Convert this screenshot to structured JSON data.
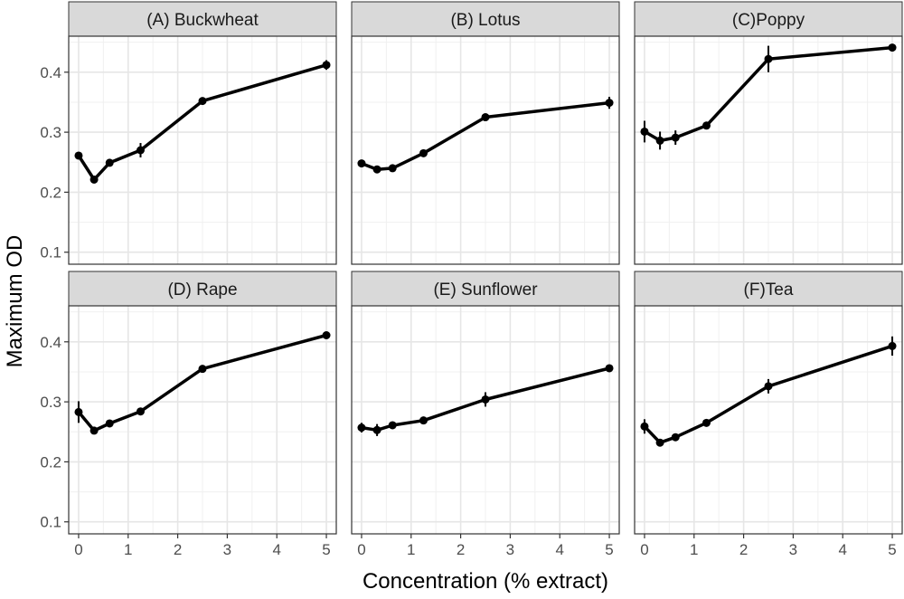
{
  "figure": {
    "xlabel": "Concentration (% extract)",
    "ylabel": "Maximum OD"
  },
  "chart_data": [
    {
      "type": "line",
      "title": "(A) Buckwheat",
      "x": [
        0,
        0.3125,
        0.625,
        1.25,
        2.5,
        5
      ],
      "y": [
        0.261,
        0.221,
        0.249,
        0.27,
        0.352,
        0.412
      ],
      "err": [
        0.004,
        0.004,
        0.003,
        0.012,
        0.006,
        0.008
      ],
      "xlim": [
        -0.2,
        5.2
      ],
      "ylim": [
        0.08,
        0.46
      ],
      "xticks": [
        0,
        1,
        2,
        3,
        4,
        5
      ],
      "yticks": [
        0.1,
        0.2,
        0.3,
        0.4
      ]
    },
    {
      "type": "line",
      "title": "(B) Lotus",
      "x": [
        0,
        0.3125,
        0.625,
        1.25,
        2.5,
        5
      ],
      "y": [
        0.248,
        0.238,
        0.24,
        0.265,
        0.325,
        0.349
      ],
      "err": [
        0.003,
        0.003,
        0.004,
        0.004,
        0.004,
        0.01
      ],
      "xlim": [
        -0.2,
        5.2
      ],
      "ylim": [
        0.08,
        0.46
      ],
      "xticks": [
        0,
        1,
        2,
        3,
        4,
        5
      ],
      "yticks": [
        0.1,
        0.2,
        0.3,
        0.4
      ]
    },
    {
      "type": "line",
      "title": "(C)Poppy",
      "x": [
        0,
        0.3125,
        0.625,
        1.25,
        2.5,
        5
      ],
      "y": [
        0.301,
        0.286,
        0.291,
        0.311,
        0.422,
        0.441
      ],
      "err": [
        0.018,
        0.015,
        0.012,
        0.005,
        0.022,
        0.004
      ],
      "xlim": [
        -0.2,
        5.2
      ],
      "ylim": [
        0.08,
        0.46
      ],
      "xticks": [
        0,
        1,
        2,
        3,
        4,
        5
      ],
      "yticks": [
        0.1,
        0.2,
        0.3,
        0.4
      ]
    },
    {
      "type": "line",
      "title": "(D) Rape",
      "x": [
        0,
        0.3125,
        0.625,
        1.25,
        2.5,
        5
      ],
      "y": [
        0.283,
        0.252,
        0.264,
        0.284,
        0.355,
        0.411
      ],
      "err": [
        0.018,
        0.004,
        0.005,
        0.004,
        0.004,
        0.004
      ],
      "xlim": [
        -0.2,
        5.2
      ],
      "ylim": [
        0.08,
        0.46
      ],
      "xticks": [
        0,
        1,
        2,
        3,
        4,
        5
      ],
      "yticks": [
        0.1,
        0.2,
        0.3,
        0.4
      ]
    },
    {
      "type": "line",
      "title": "(E) Sunflower",
      "x": [
        0,
        0.3125,
        0.625,
        1.25,
        2.5,
        5
      ],
      "y": [
        0.257,
        0.253,
        0.261,
        0.269,
        0.304,
        0.356
      ],
      "err": [
        0.008,
        0.01,
        0.004,
        0.004,
        0.012,
        0.006
      ],
      "xlim": [
        -0.2,
        5.2
      ],
      "ylim": [
        0.08,
        0.46
      ],
      "xticks": [
        0,
        1,
        2,
        3,
        4,
        5
      ],
      "yticks": [
        0.1,
        0.2,
        0.3,
        0.4
      ]
    },
    {
      "type": "line",
      "title": "(F)Tea",
      "x": [
        0,
        0.3125,
        0.625,
        1.25,
        2.5,
        5
      ],
      "y": [
        0.259,
        0.232,
        0.241,
        0.265,
        0.326,
        0.393
      ],
      "err": [
        0.012,
        0.004,
        0.004,
        0.004,
        0.012,
        0.016
      ],
      "xlim": [
        -0.2,
        5.2
      ],
      "ylim": [
        0.08,
        0.46
      ],
      "xticks": [
        0,
        1,
        2,
        3,
        4,
        5
      ],
      "yticks": [
        0.1,
        0.2,
        0.3,
        0.4
      ]
    }
  ]
}
